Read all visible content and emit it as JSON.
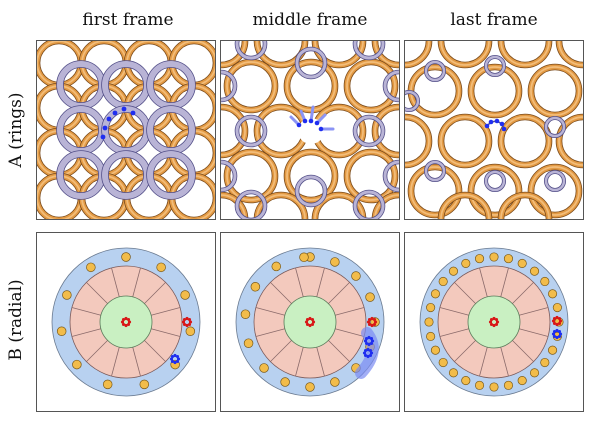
{
  "columns": [
    "first frame",
    "middle frame",
    "last frame"
  ],
  "rows": [
    "A (rings)",
    "B (radial)"
  ],
  "colors": {
    "orange_ring": "#e39a44",
    "orange_inner": "#f2bd7a",
    "purple_ring": "#b9b4d6",
    "purple_edge": "#545089",
    "blue_marker": "#1f2ef0",
    "outer_disk": "#b8d1f0",
    "sector_ring": "#f3c9bd",
    "center_disk": "#c9f0c2",
    "small_disk": "#f2bc4a",
    "red_marker": "#d81818"
  },
  "radial_dot_counts": [
    11,
    16,
    28
  ]
}
